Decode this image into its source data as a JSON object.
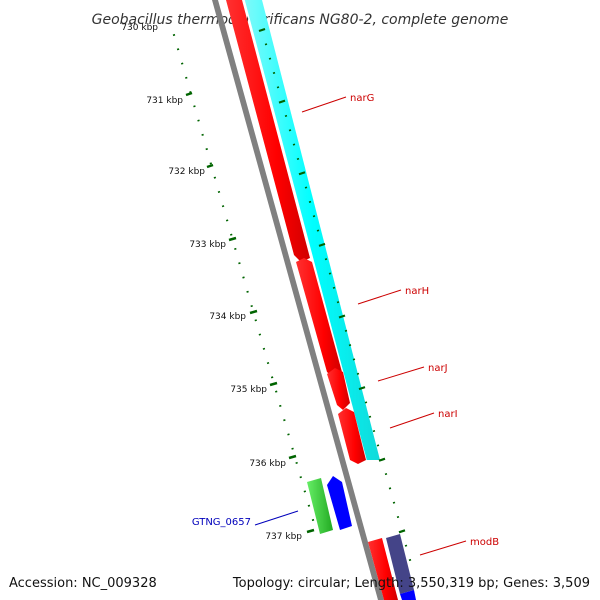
{
  "title": "Geobacillus thermodenitrificans NG80-2, complete genome",
  "footer": {
    "accession": "Accession: NC_009328",
    "topology": "Topology: circular; Length: 3,550,319 bp; Genes: 3,509"
  },
  "ticks": [
    {
      "label": "730 kbp"
    },
    {
      "label": "731 kbp"
    },
    {
      "label": "732 kbp"
    },
    {
      "label": "733 kbp"
    },
    {
      "label": "734 kbp"
    },
    {
      "label": "735 kbp"
    },
    {
      "label": "736 kbp"
    },
    {
      "label": "737 kbp"
    }
  ],
  "genes": {
    "narG": "narG",
    "narH": "narH",
    "narJ": "narJ",
    "narI": "narI",
    "modB": "modB",
    "gtng": "GTNG_0657"
  },
  "colors": {
    "forward_cds": "#ff0000",
    "feature_band": "#00ffff",
    "backbone": "#808080",
    "tick": "#006400",
    "gtng_green": "#33cc33",
    "gtng_blue": "#0000ff",
    "modB_purple": "#444488"
  }
}
